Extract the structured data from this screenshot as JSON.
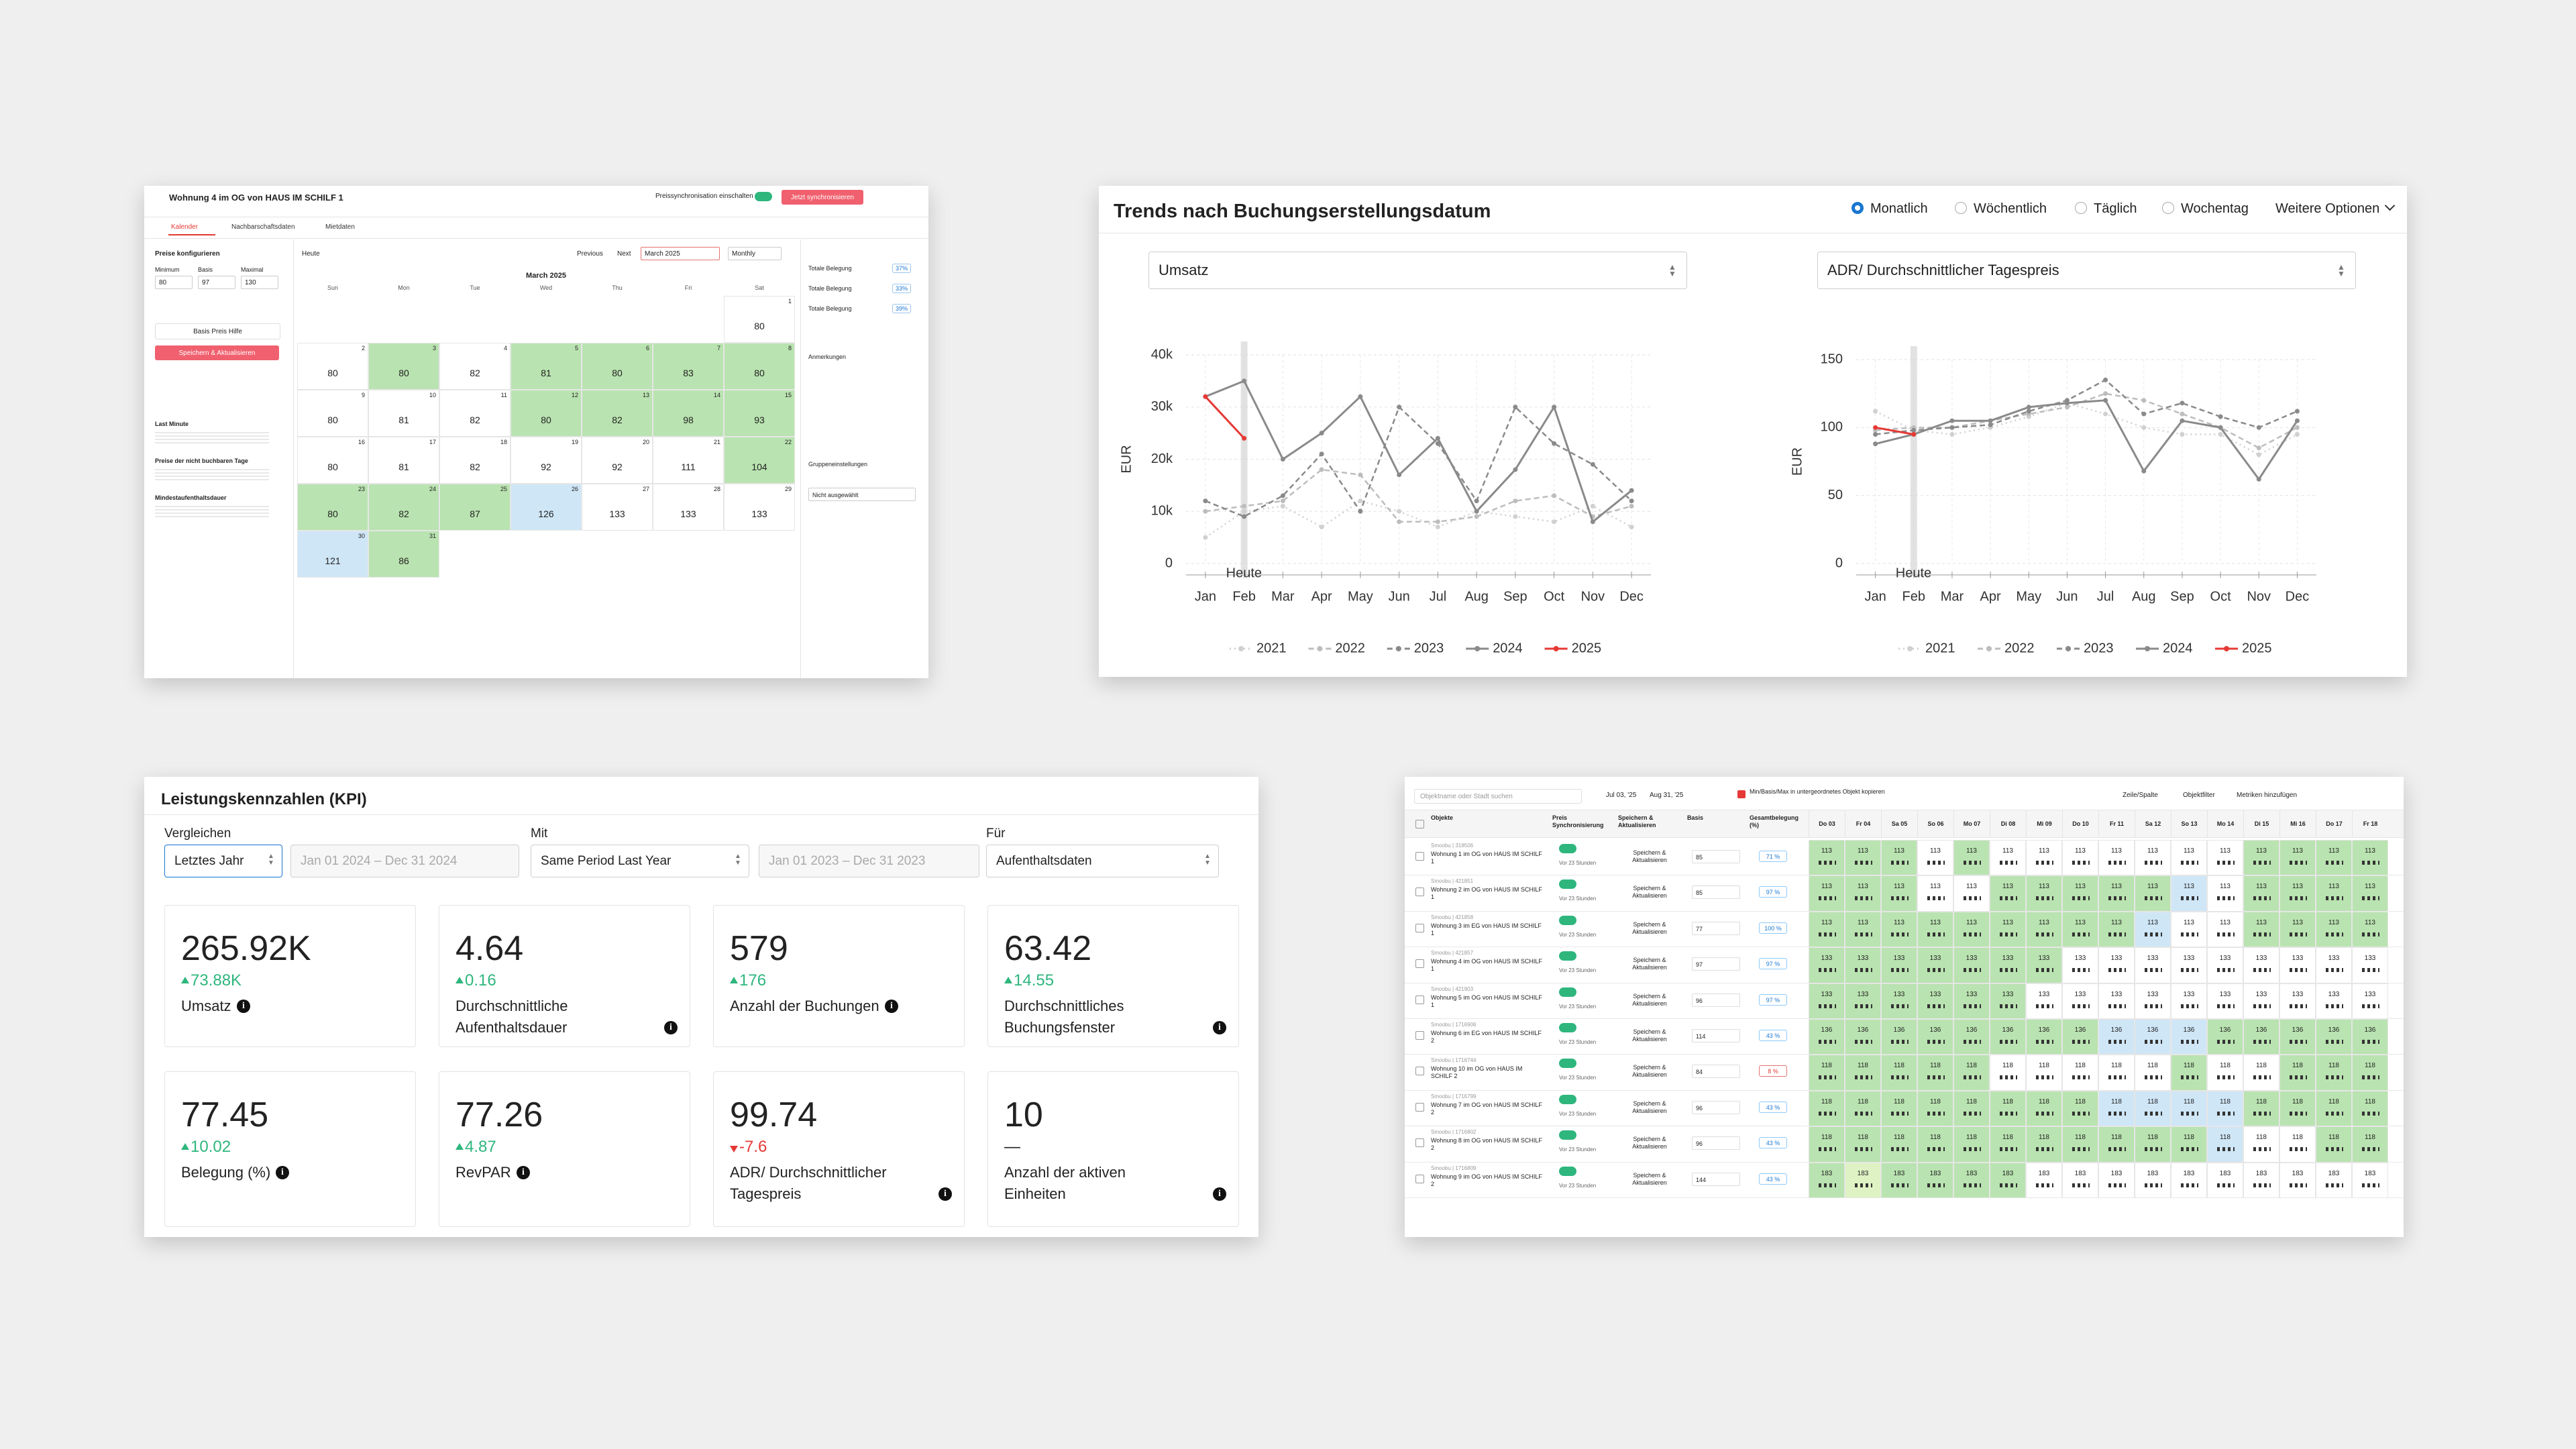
{
  "calendar": {
    "title": "Wohnung 4 im OG von HAUS IM SCHILF 1",
    "sync_label": "Preissynchronisation einschalten",
    "sync_button": "Jetzt synchronisieren",
    "tabs": [
      "Kalender",
      "Nachbarschaftsdaten",
      "Mietdaten"
    ],
    "sidebar": {
      "heading": "Preise konfigurieren",
      "fields": [
        {
          "label": "Minimum",
          "value": "80"
        },
        {
          "label": "Basis",
          "value": "97"
        },
        {
          "label": "Maximal",
          "value": "130"
        }
      ],
      "help": "Basis Preis Hilfe",
      "save": "Speichern & Aktualisieren",
      "notes": [
        "Last Minute",
        "Preise der nicht buchbaren Tage",
        "Mindestaufenthaltsdauer"
      ]
    },
    "toolbar": {
      "today": "Heute",
      "prev": "Previous",
      "next": "Next",
      "month": "March 2025",
      "view": "Monthly"
    },
    "month_title": "March 2025",
    "weekdays": [
      "Sun",
      "Mon",
      "Tue",
      "Wed",
      "Thu",
      "Fri",
      "Sat"
    ],
    "weeks": [
      [
        null,
        null,
        null,
        null,
        null,
        null,
        {
          "day": "1",
          "price": "80",
          "shade": "w"
        }
      ],
      [
        {
          "day": "2",
          "price": "80",
          "shade": "w"
        },
        {
          "day": "3",
          "price": "80",
          "shade": "g"
        },
        {
          "day": "4",
          "price": "82",
          "shade": "w"
        },
        {
          "day": "5",
          "price": "81",
          "shade": "g"
        },
        {
          "day": "6",
          "price": "80",
          "shade": "g"
        },
        {
          "day": "7",
          "price": "83",
          "shade": "g"
        },
        {
          "day": "8",
          "price": "80",
          "shade": "g"
        }
      ],
      [
        {
          "day": "9",
          "price": "80",
          "shade": "w"
        },
        {
          "day": "10",
          "price": "81",
          "shade": "w"
        },
        {
          "day": "11",
          "price": "82",
          "shade": "w"
        },
        {
          "day": "12",
          "price": "80",
          "shade": "g"
        },
        {
          "day": "13",
          "price": "82",
          "shade": "g"
        },
        {
          "day": "14",
          "price": "98",
          "shade": "g"
        },
        {
          "day": "15",
          "price": "93",
          "shade": "g"
        }
      ],
      [
        {
          "day": "16",
          "price": "80",
          "shade": "w"
        },
        {
          "day": "17",
          "price": "81",
          "shade": "w"
        },
        {
          "day": "18",
          "price": "82",
          "shade": "w"
        },
        {
          "day": "19",
          "price": "92",
          "shade": "w"
        },
        {
          "day": "20",
          "price": "92",
          "shade": "w"
        },
        {
          "day": "21",
          "price": "111",
          "shade": "w"
        },
        {
          "day": "22",
          "price": "104",
          "shade": "g"
        }
      ],
      [
        {
          "day": "23",
          "price": "80",
          "shade": "g"
        },
        {
          "day": "24",
          "price": "82",
          "shade": "g"
        },
        {
          "day": "25",
          "price": "87",
          "shade": "g"
        },
        {
          "day": "26",
          "price": "126",
          "shade": "b"
        },
        {
          "day": "27",
          "price": "133",
          "shade": "w"
        },
        {
          "day": "28",
          "price": "133",
          "shade": "w"
        },
        {
          "day": "29",
          "price": "133",
          "shade": "w"
        }
      ],
      [
        {
          "day": "30",
          "price": "121",
          "shade": "b"
        },
        {
          "day": "31",
          "price": "86",
          "shade": "g"
        },
        null,
        null,
        null,
        null,
        null
      ]
    ],
    "right": {
      "items": [
        {
          "label": "Totale Belegung",
          "value": "37%"
        },
        {
          "label": "Totale Belegung",
          "value": "33%"
        },
        {
          "label": "Totale Belegung",
          "value": "39%"
        }
      ],
      "sections": [
        "Anmerkungen",
        "Gruppeneinstellungen"
      ],
      "group_select": "Nicht ausgewählt"
    }
  },
  "trends": {
    "title": "Trends nach Buchungserstellungsdatum",
    "periods": [
      "Monatlich",
      "Wöchentlich",
      "Täglich",
      "Wochentag"
    ],
    "selected": "Monatlich",
    "more": "Weitere Optionen"
  },
  "chart_data": [
    {
      "type": "line",
      "selector": "Umsatz",
      "ylabel": "EUR",
      "categories": [
        "Jan",
        "Feb",
        "Mar",
        "Apr",
        "May",
        "Jun",
        "Jul",
        "Aug",
        "Sep",
        "Oct",
        "Nov",
        "Dec"
      ],
      "ylim": [
        0,
        40000
      ],
      "yticks": [
        0,
        {
          "value": 10000,
          "label": "10k"
        },
        {
          "value": 20000,
          "label": "20k"
        },
        {
          "value": 30000,
          "label": "30k"
        },
        {
          "value": 40000,
          "label": "40k"
        }
      ],
      "grid": true,
      "marker": {
        "text": "Heute",
        "x": "Feb"
      },
      "series": [
        {
          "name": "2021",
          "color": "#d0d0d0",
          "style": "dotted",
          "values": [
            5000,
            10000,
            11000,
            7000,
            12000,
            10000,
            7000,
            10000,
            9000,
            8000,
            11000,
            7000
          ]
        },
        {
          "name": "2022",
          "color": "#bdbdbd",
          "style": "dashed",
          "values": [
            10000,
            11000,
            12000,
            18000,
            17000,
            8000,
            8000,
            9000,
            12000,
            13000,
            9000,
            11000
          ]
        },
        {
          "name": "2023",
          "color": "#8a8a8a",
          "style": "dashed",
          "values": [
            12000,
            9000,
            13000,
            21000,
            10000,
            30000,
            23000,
            12000,
            30000,
            23000,
            19000,
            12000
          ]
        },
        {
          "name": "2024",
          "color": "#8a8a8a",
          "style": "solid",
          "values": [
            32000,
            35000,
            20000,
            25000,
            32000,
            17000,
            24000,
            10000,
            18000,
            30000,
            8000,
            14000
          ]
        },
        {
          "name": "2025",
          "color": "#e53935",
          "style": "solid",
          "values": [
            32000,
            24000,
            null,
            null,
            null,
            null,
            null,
            null,
            null,
            null,
            null,
            null
          ]
        }
      ]
    },
    {
      "type": "line",
      "selector": "ADR/ Durchschnittlicher Tagespreis",
      "ylabel": "EUR",
      "categories": [
        "Jan",
        "Feb",
        "Mar",
        "Apr",
        "May",
        "Jun",
        "Jul",
        "Aug",
        "Sep",
        "Oct",
        "Nov",
        "Dec"
      ],
      "ylim": [
        0,
        150
      ],
      "yticks": [
        0,
        50,
        100,
        150
      ],
      "grid": true,
      "marker": {
        "text": "Heute",
        "x": "Feb"
      },
      "series": [
        {
          "name": "2021",
          "color": "#d0d0d0",
          "style": "dotted",
          "values": [
            112,
            98,
            95,
            100,
            108,
            118,
            110,
            100,
            95,
            95,
            80,
            95
          ]
        },
        {
          "name": "2022",
          "color": "#bdbdbd",
          "style": "dashed",
          "values": [
            98,
            100,
            100,
            105,
            110,
            115,
            125,
            120,
            110,
            100,
            85,
            100
          ]
        },
        {
          "name": "2023",
          "color": "#8a8a8a",
          "style": "dashed",
          "values": [
            95,
            98,
            100,
            102,
            112,
            120,
            135,
            110,
            118,
            108,
            100,
            112
          ]
        },
        {
          "name": "2024",
          "color": "#8a8a8a",
          "style": "solid",
          "values": [
            88,
            95,
            105,
            105,
            115,
            118,
            120,
            68,
            105,
            100,
            62,
            105
          ]
        },
        {
          "name": "2025",
          "color": "#e53935",
          "style": "solid",
          "values": [
            100,
            95,
            null,
            null,
            null,
            null,
            null,
            null,
            null,
            null,
            null,
            null
          ]
        }
      ]
    }
  ],
  "kpi": {
    "title": "Leistungskennzahlen (KPI)",
    "filters": [
      {
        "label": "Vergleichen",
        "selects": [
          {
            "text": "Letztes Jahr",
            "disabled": false
          },
          {
            "text": "Jan 01 2024 – Dec 31 2024",
            "disabled": true
          }
        ]
      },
      {
        "label": "Mit",
        "selects": [
          {
            "text": "Same Period Last Year",
            "disabled": false
          },
          {
            "text": "Jan 01 2023 – Dec 31 2023",
            "disabled": true
          }
        ]
      },
      {
        "label": "Für",
        "selects": [
          {
            "text": "Aufenthaltsdaten",
            "disabled": false
          }
        ]
      }
    ],
    "cards": [
      {
        "value": "265.92K",
        "delta": "73.88K",
        "trend": "up",
        "label": "Umsatz"
      },
      {
        "value": "4.64",
        "delta": "0.16",
        "trend": "up",
        "label": "Durchschnittliche Aufenthaltsdauer"
      },
      {
        "value": "579",
        "delta": "176",
        "trend": "up",
        "label": "Anzahl der Buchungen"
      },
      {
        "value": "63.42",
        "delta": "14.55",
        "trend": "up",
        "label": "Durchschnittliches Buchungsfenster"
      },
      {
        "value": "77.45",
        "delta": "10.02",
        "trend": "up",
        "label": "Belegung (%)"
      },
      {
        "value": "77.26",
        "delta": "4.87",
        "trend": "up",
        "label": "RevPAR"
      },
      {
        "value": "99.74",
        "delta": "-7.6",
        "trend": "down",
        "label": "ADR/ Durchschnittlicher Tagespreis"
      },
      {
        "value": "10",
        "delta": "—",
        "trend": "none",
        "label": "Anzahl der aktiven Einheiten"
      }
    ]
  },
  "table": {
    "search": "Objektname oder Stadt suchen",
    "date_from": "Jul 03, '25",
    "date_to": "Aug 31, '25",
    "copy_label": "Min/Basis/Max in untergeordnetes Objekt kopieren",
    "tools": [
      "Zeile/Spalte",
      "Objektfilter",
      "Metriken hinzufügen"
    ],
    "headers": [
      "Objekte",
      "Preis Synchronisierung",
      "Speichern & Aktualisieren",
      "Basis",
      "Gesamtbelegung (%)"
    ],
    "dates": [
      "Do 03",
      "Fr 04",
      "Sa 05",
      "So 06",
      "Mo 07",
      "Di 08",
      "Mi 09",
      "Do 10",
      "Fr 11",
      "Sa 12",
      "So 13",
      "Mo 14",
      "Di 15",
      "Mi 16",
      "Do 17",
      "Fr 18"
    ],
    "sync_time": "Vor 23 Stunden",
    "save_text": "Speichern & Aktualisieren",
    "rows": [
      {
        "id": "Smoobu | 318506",
        "name": "Wohnung 1 im OG von HAUS IM SCHILF 1",
        "basis": "85",
        "occupancy": "71 %",
        "price": "113",
        "shades": "GGGWGWWWWWWWGGGG"
      },
      {
        "id": "Smoobu | 421851",
        "name": "Wohnung 2 im OG von HAUS IM SCHILF 1",
        "basis": "85",
        "occupancy": "97 %",
        "price": "113",
        "shades": "GGGWWGGGGGBWGGGG"
      },
      {
        "id": "Smoobu | 421858",
        "name": "Wohnung 3 im EG von HAUS IM SCHILF 1",
        "basis": "77",
        "occupancy": "100 %",
        "price": "113",
        "shades": "GGGGGGGGGBWWGGGG"
      },
      {
        "id": "Smoobu | 421857",
        "name": "Wohnung 4 im OG von HAUS IM SCHILF 1",
        "basis": "97",
        "occupancy": "97 %",
        "price": "133",
        "shades": "GGGGGGGWWWWWWWWW"
      },
      {
        "id": "Smoobu | 421903",
        "name": "Wohnung 5 im OG von HAUS IM SCHILF 1",
        "basis": "96",
        "occupancy": "97 %",
        "price": "133",
        "shades": "GGGGGGWWWWWWWWWW"
      },
      {
        "id": "Smoobu | 1716906",
        "name": "Wohnung 6 im EG von HAUS IM SCHILF 2",
        "basis": "114",
        "occupancy": "43 %",
        "price": "136",
        "shades": "GGGGGGGGBBBGGGGG"
      },
      {
        "id": "Smoobu | 1716744",
        "name": "Wohnung 10 im OG von HAUS IM SCHILF 2",
        "basis": "84",
        "occupancy": "8 %",
        "price": "118",
        "shades": "GGGGGWWWWWGWWGGG"
      },
      {
        "id": "Smoobu | 1716799",
        "name": "Wohnung 7 im OG von HAUS IM SCHILF 2",
        "basis": "96",
        "occupancy": "43 %",
        "price": "118",
        "shades": "GGGGGGGGBBBBGGGG"
      },
      {
        "id": "Smoobu | 1716802",
        "name": "Wohnung 8 im OG von HAUS IM SCHILF 2",
        "basis": "96",
        "occupancy": "43 %",
        "price": "118",
        "shades": "GGGGGGGGGGGBWWGG"
      },
      {
        "id": "Smoobu | 1716809",
        "name": "Wohnung 9 im OG von HAUS IM SCHILF 2",
        "basis": "144",
        "occupancy": "43 %",
        "price": "183",
        "shades": "GLGGGGWWWWWWWWWW"
      }
    ]
  }
}
